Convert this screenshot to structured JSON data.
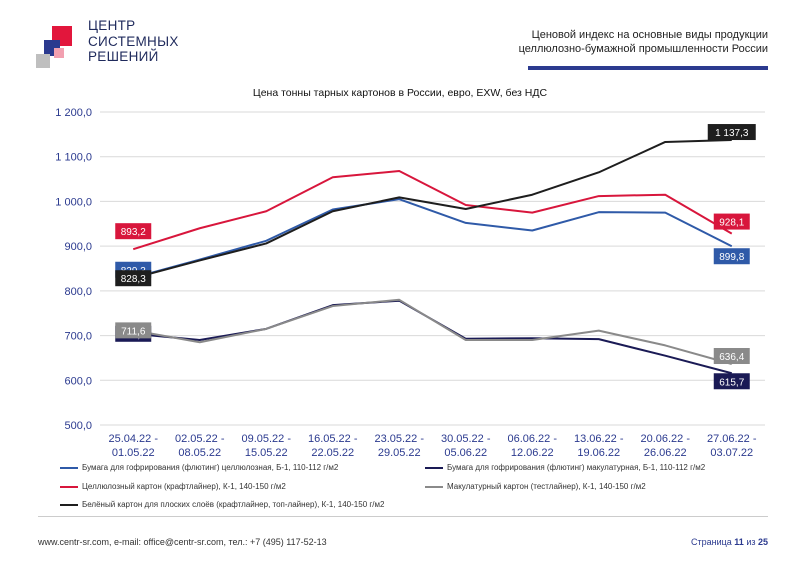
{
  "brand": {
    "logo_line1": "ЦЕНТР",
    "logo_line2": "СИСТЕМНЫХ",
    "logo_line3": "РЕШЕНИЙ"
  },
  "header": {
    "title_line1": "Ценовой индекс на основные виды продукции",
    "title_line2": "целлюлозно-бумажной промышленности России",
    "accent_color": "#2b3a8f"
  },
  "footer": {
    "contacts": "www.centr-sr.com, e-mail: office@centr-sr.com, тел.: +7 (495) 117-52-13",
    "page_prefix": "Страница",
    "page_number": "11",
    "page_of": "из",
    "page_total": "25"
  },
  "chart_data": {
    "type": "line",
    "title": "Цена тонны тарных картонов в России, евро, EXW, без НДС",
    "ylim": [
      500,
      1200
    ],
    "yticks": [
      "500,0",
      "600,0",
      "700,0",
      "800,0",
      "900,0",
      "1 000,0",
      "1 100,0",
      "1 200,0"
    ],
    "grid": true,
    "categories": [
      [
        "25.04.22 -",
        "01.05.22"
      ],
      [
        "02.05.22 -",
        "08.05.22"
      ],
      [
        "09.05.22 -",
        "15.05.22"
      ],
      [
        "16.05.22 -",
        "22.05.22"
      ],
      [
        "23.05.22 -",
        "29.05.22"
      ],
      [
        "30.05.22 -",
        "05.06.22"
      ],
      [
        "06.06.22 -",
        "12.06.22"
      ],
      [
        "13.06.22 -",
        "19.06.22"
      ],
      [
        "20.06.22 -",
        "26.06.22"
      ],
      [
        "27.06.22 -",
        "03.07.22"
      ]
    ],
    "series": [
      {
        "name": "Бумага для гофрирования (флютинг) целлюлозная, Б-1, 110-112 г/м2",
        "color": "#2f5aa8",
        "values": [
          829.3,
          870,
          912,
          982,
          1005,
          952,
          935,
          976,
          975,
          899.8
        ],
        "first_label": "829,3",
        "last_label": "899,8"
      },
      {
        "name": "Бумага для гофрирования (флютинг) макулатурная, Б-1, 110-112 г/м2",
        "color": "#1a1a55",
        "values": [
          704.0,
          690,
          715,
          768,
          778,
          693,
          694,
          692,
          655,
          615.7
        ],
        "first_label": "704,0",
        "last_label": "615,7"
      },
      {
        "name": "Целлюлозный картон (крафтлайнер), К-1, 140-150 г/м2",
        "color": "#d8163c",
        "values": [
          893.2,
          940,
          978,
          1054,
          1068,
          992,
          975,
          1012,
          1015,
          928.1
        ],
        "first_label": "893,2",
        "last_label": "928,1"
      },
      {
        "name": "Макулатурный картон (тестлайнер), К-1, 140-150 г/м2",
        "color": "#8a8a8a",
        "values": [
          711.6,
          685,
          715,
          766,
          780,
          690,
          690,
          711,
          678,
          636.4
        ],
        "first_label": "711,6",
        "last_label": "636,4"
      },
      {
        "name": "Белёный картон для плоских слоёв (крафтлайнер, топ-лайнер), К-1, 140-150 г/м2",
        "color": "#1e1e1e",
        "values": [
          828.3,
          868,
          906,
          978,
          1009,
          983,
          1015,
          1065,
          1133,
          1137.3
        ],
        "first_label": "828,3",
        "last_label": "1 137,3"
      }
    ]
  }
}
